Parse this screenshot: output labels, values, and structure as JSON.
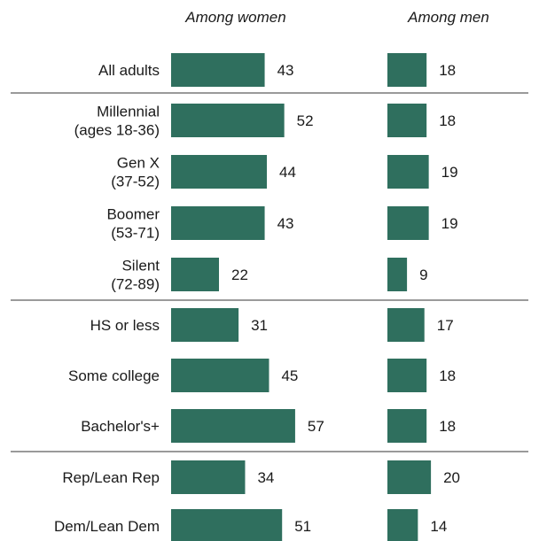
{
  "chart_data": {
    "type": "bar",
    "orientation": "horizontal",
    "categories": [
      [
        "All adults"
      ],
      [
        "Millennial",
        "(ages 18-36)"
      ],
      [
        "Gen X",
        "(37-52)"
      ],
      [
        "Boomer",
        "(53-71)"
      ],
      [
        "Silent",
        "(72-89)"
      ],
      [
        "HS or less"
      ],
      [
        "Some college"
      ],
      [
        "Bachelor's+"
      ],
      [
        "Rep/Lean Rep"
      ],
      [
        "Dem/Lean Dem"
      ]
    ],
    "series": [
      {
        "name": "Among women",
        "values": [
          43,
          52,
          44,
          43,
          22,
          31,
          45,
          57,
          34,
          51
        ]
      },
      {
        "name": "Among men",
        "values": [
          18,
          18,
          19,
          19,
          9,
          17,
          18,
          18,
          20,
          14
        ]
      }
    ],
    "group_breaks_after": [
      0,
      4,
      7
    ],
    "bar_color": "#2f6f5e",
    "separator_color": "#9a9a9a",
    "title": "",
    "xlabel": "",
    "ylabel": ""
  }
}
